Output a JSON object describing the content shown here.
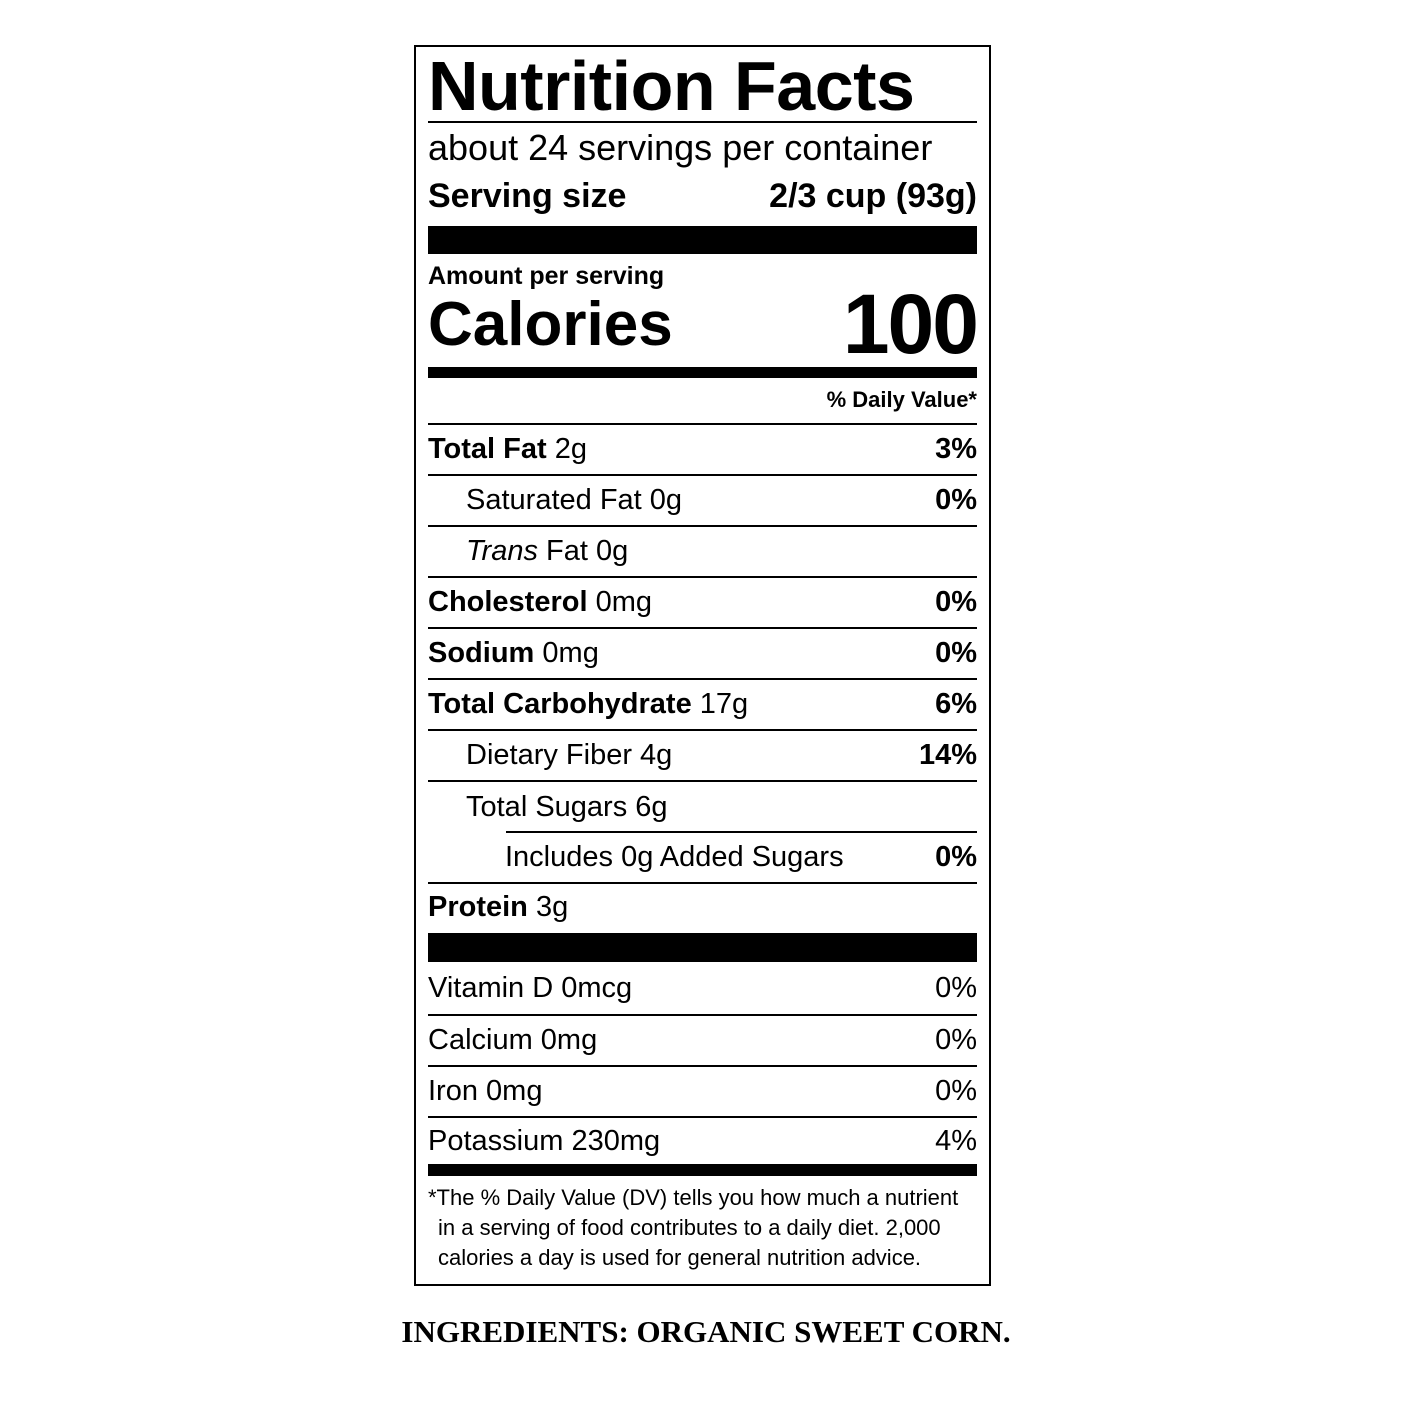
{
  "label": {
    "title": "Nutrition Facts",
    "servings_per_container": "about 24 servings per container",
    "serving_size_label": "Serving size",
    "serving_size_value": "2/3 cup (93g)",
    "amount_per_serving": "Amount per serving",
    "calories_label": "Calories",
    "calories_value": "100",
    "daily_value_header": "% Daily Value*",
    "nutrients": [
      {
        "name": "Total Fat",
        "amount": "2g",
        "dv": "3%"
      },
      {
        "name": "Saturated Fat 0g",
        "dv": "0%"
      },
      {
        "prefix": "Trans",
        "name": " Fat 0g"
      },
      {
        "name": "Cholesterol",
        "amount": "0mg",
        "dv": "0%"
      },
      {
        "name": "Sodium",
        "amount": "0mg",
        "dv": "0%"
      },
      {
        "name": "Total Carbohydrate",
        "amount": "17g",
        "dv": "6%"
      },
      {
        "name": "Dietary Fiber 4g",
        "dv": "14%"
      },
      {
        "name": "Total Sugars 6g"
      },
      {
        "name": "Includes 0g Added Sugars",
        "dv": "0%"
      },
      {
        "name": "Protein",
        "amount": "3g"
      }
    ],
    "vitamins": [
      {
        "name": "Vitamin D 0mcg",
        "dv": "0%"
      },
      {
        "name": "Calcium 0mg",
        "dv": "0%"
      },
      {
        "name": "Iron 0mg",
        "dv": "0%"
      },
      {
        "name": "Potassium 230mg",
        "dv": "4%"
      }
    ],
    "footnote": [
      "*The % Daily Value (DV) tells you how much a nutrient",
      "in a serving of food contributes to a daily diet. 2,000",
      "calories a day is used for general nutrition advice."
    ]
  },
  "ingredients": "INGREDIENTS: ORGANIC SWEET CORN."
}
